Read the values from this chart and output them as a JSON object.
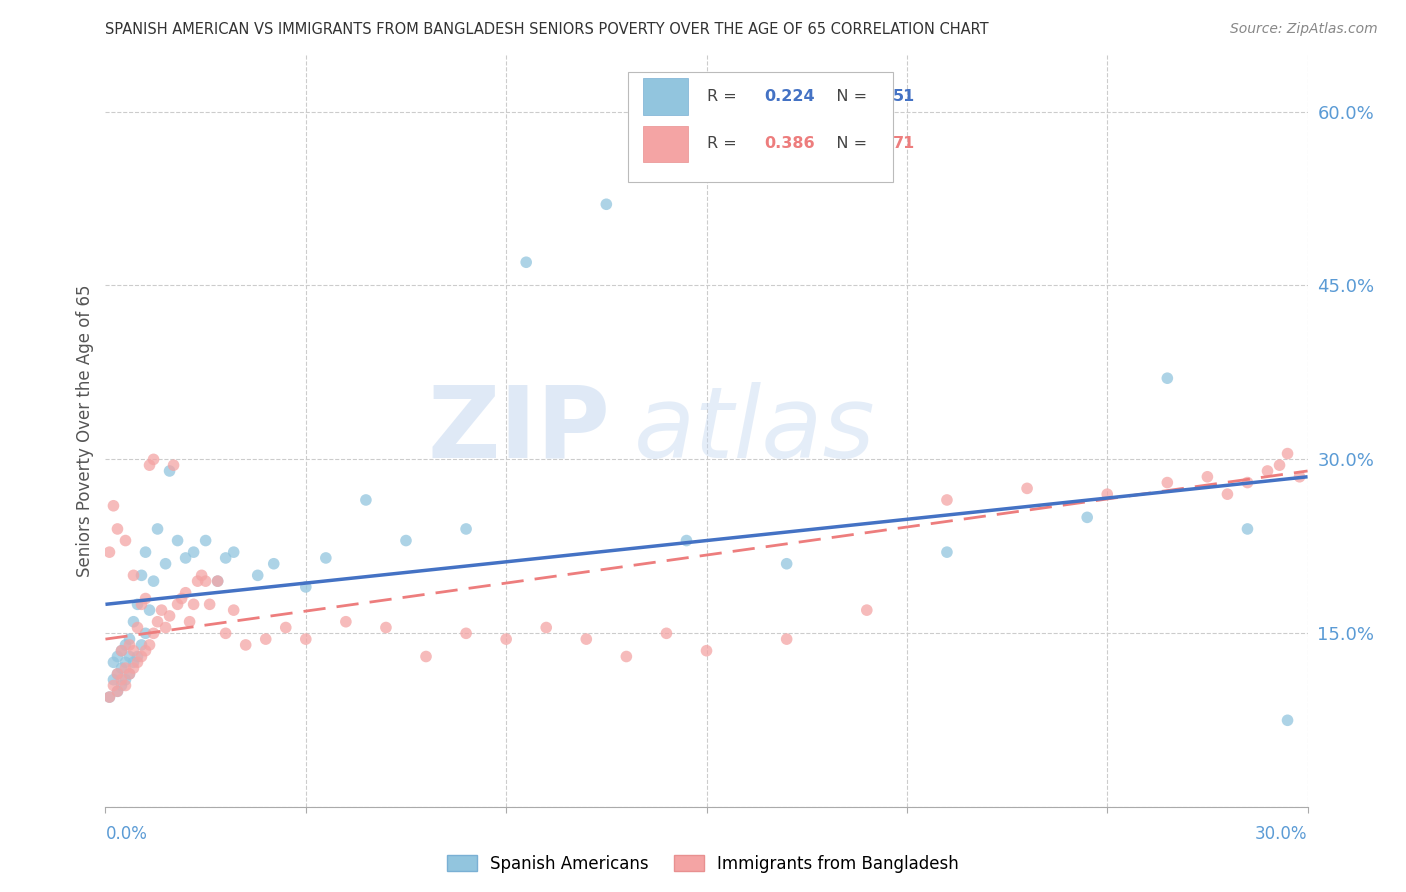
{
  "title": "SPANISH AMERICAN VS IMMIGRANTS FROM BANGLADESH SENIORS POVERTY OVER THE AGE OF 65 CORRELATION CHART",
  "source": "Source: ZipAtlas.com",
  "ylabel": "Seniors Poverty Over the Age of 65",
  "xmin": 0.0,
  "xmax": 0.3,
  "ymin": 0.0,
  "ymax": 0.65,
  "color_blue": "#92c5de",
  "color_pink": "#f4a4a4",
  "color_trend_blue": "#4472c4",
  "color_trend_pink": "#ed7d7d",
  "color_axis_label": "#5b9bd5",
  "legend1_R": "0.224",
  "legend1_N": "51",
  "legend2_R": "0.386",
  "legend2_N": "71",
  "sa_x": [
    0.001,
    0.002,
    0.002,
    0.003,
    0.003,
    0.003,
    0.004,
    0.004,
    0.004,
    0.005,
    0.005,
    0.005,
    0.006,
    0.006,
    0.006,
    0.007,
    0.007,
    0.008,
    0.008,
    0.009,
    0.009,
    0.01,
    0.01,
    0.011,
    0.012,
    0.013,
    0.015,
    0.016,
    0.018,
    0.02,
    0.022,
    0.025,
    0.028,
    0.03,
    0.032,
    0.038,
    0.042,
    0.05,
    0.055,
    0.065,
    0.075,
    0.09,
    0.105,
    0.125,
    0.145,
    0.17,
    0.21,
    0.245,
    0.265,
    0.285,
    0.295
  ],
  "sa_y": [
    0.095,
    0.11,
    0.125,
    0.1,
    0.115,
    0.13,
    0.105,
    0.12,
    0.135,
    0.11,
    0.125,
    0.14,
    0.115,
    0.13,
    0.145,
    0.125,
    0.16,
    0.13,
    0.175,
    0.14,
    0.2,
    0.15,
    0.22,
    0.17,
    0.195,
    0.24,
    0.21,
    0.29,
    0.23,
    0.215,
    0.22,
    0.23,
    0.195,
    0.215,
    0.22,
    0.2,
    0.21,
    0.19,
    0.215,
    0.265,
    0.23,
    0.24,
    0.47,
    0.52,
    0.23,
    0.21,
    0.22,
    0.25,
    0.37,
    0.24,
    0.075
  ],
  "im_x": [
    0.001,
    0.001,
    0.002,
    0.002,
    0.003,
    0.003,
    0.003,
    0.004,
    0.004,
    0.005,
    0.005,
    0.005,
    0.006,
    0.006,
    0.007,
    0.007,
    0.007,
    0.008,
    0.008,
    0.009,
    0.009,
    0.01,
    0.01,
    0.011,
    0.011,
    0.012,
    0.012,
    0.013,
    0.014,
    0.015,
    0.016,
    0.017,
    0.018,
    0.019,
    0.02,
    0.021,
    0.022,
    0.023,
    0.024,
    0.025,
    0.026,
    0.028,
    0.03,
    0.032,
    0.035,
    0.04,
    0.045,
    0.05,
    0.06,
    0.07,
    0.08,
    0.09,
    0.1,
    0.11,
    0.12,
    0.13,
    0.14,
    0.15,
    0.17,
    0.19,
    0.21,
    0.23,
    0.25,
    0.265,
    0.275,
    0.28,
    0.285,
    0.29,
    0.293,
    0.295,
    0.298
  ],
  "im_y": [
    0.095,
    0.22,
    0.105,
    0.26,
    0.1,
    0.115,
    0.24,
    0.11,
    0.135,
    0.105,
    0.12,
    0.23,
    0.115,
    0.14,
    0.12,
    0.135,
    0.2,
    0.125,
    0.155,
    0.13,
    0.175,
    0.135,
    0.18,
    0.14,
    0.295,
    0.15,
    0.3,
    0.16,
    0.17,
    0.155,
    0.165,
    0.295,
    0.175,
    0.18,
    0.185,
    0.16,
    0.175,
    0.195,
    0.2,
    0.195,
    0.175,
    0.195,
    0.15,
    0.17,
    0.14,
    0.145,
    0.155,
    0.145,
    0.16,
    0.155,
    0.13,
    0.15,
    0.145,
    0.155,
    0.145,
    0.13,
    0.15,
    0.135,
    0.145,
    0.17,
    0.265,
    0.275,
    0.27,
    0.28,
    0.285,
    0.27,
    0.28,
    0.29,
    0.295,
    0.305,
    0.285
  ],
  "sa_trend_x": [
    0.0,
    0.3
  ],
  "sa_trend_y": [
    0.175,
    0.285
  ],
  "im_trend_x": [
    0.0,
    0.3
  ],
  "im_trend_y": [
    0.145,
    0.29
  ]
}
